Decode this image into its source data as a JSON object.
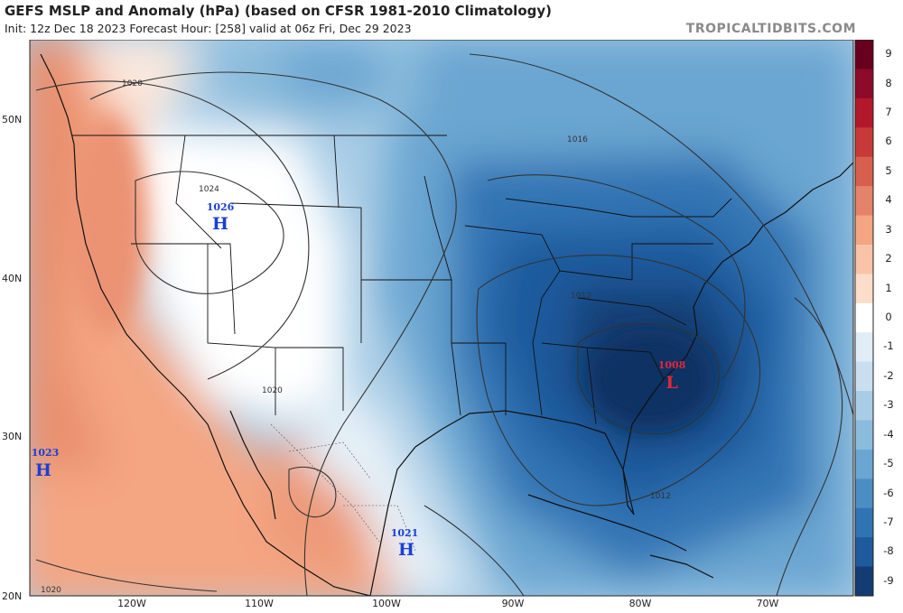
{
  "header": {
    "title": "GEFS MSLP and Anomaly (hPa) (based on CFSR 1981-2010 Climatology)",
    "subtitle": "Init: 12z Dec 18 2023   Forecast Hour: [258]   valid at 06z Fri, Dec 29 2023",
    "brand": "TROPICALTIDBITS.COM"
  },
  "latitude_labels": [
    "50N",
    "40N",
    "30N",
    "20N"
  ],
  "longitude_labels": [
    "120W",
    "110W",
    "100W",
    "90W",
    "80W",
    "70W"
  ],
  "isobar_labels": [
    "1020",
    "1024",
    "1016",
    "1012",
    "1020",
    "1012",
    "1020"
  ],
  "pressure_centers": [
    {
      "letter": "H",
      "value": "1026",
      "color": "#1a3fd6"
    },
    {
      "letter": "L",
      "value": "1008",
      "color": "#e0283a"
    },
    {
      "letter": "H",
      "value": "1023",
      "color": "#1a3fd6"
    },
    {
      "letter": "H",
      "value": "1021",
      "color": "#1a3fd6"
    }
  ],
  "colorbar": {
    "labels": [
      "9",
      "8",
      "7",
      "6",
      "5",
      "4",
      "3",
      "2",
      "1",
      "0",
      "-1",
      "-2",
      "-3",
      "-4",
      "-5",
      "-6",
      "-7",
      "-8",
      "-9"
    ],
    "colors": [
      "#67001f",
      "#8e0a2a",
      "#b2182b",
      "#c83a3a",
      "#d6604d",
      "#e4836a",
      "#f4a582",
      "#f8c3a6",
      "#fbddc9",
      "#ffffff",
      "#e1edf6",
      "#c9dff0",
      "#a9cde6",
      "#8bbcdc",
      "#6aa6d1",
      "#4a8ec4",
      "#3074b4",
      "#1f5a9c",
      "#123c72"
    ]
  }
}
